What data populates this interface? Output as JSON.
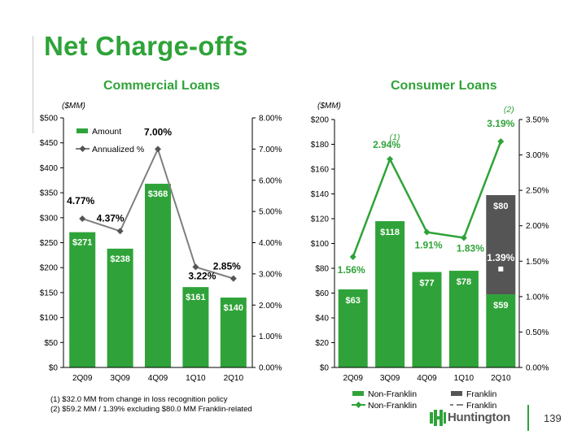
{
  "page": {
    "title": "Net Charge-offs",
    "footnotes": [
      "(1)  $32.0 MM from change in loss recognition policy",
      "(2)  $59.2 MM / 1.39% excluding $80.0 MM Franklin-related"
    ],
    "logo_text": "Huntington",
    "page_number": "139"
  },
  "colors": {
    "accent_green": "#2fa339",
    "franklin_gray": "#555555",
    "line_gray": "#7f7f7f"
  },
  "chart_data": [
    {
      "type": "bar",
      "title": "Commercial Loans",
      "units_note": "($MM)",
      "categories": [
        "2Q09",
        "3Q09",
        "4Q09",
        "1Q10",
        "2Q10"
      ],
      "series": [
        {
          "name": "Amount",
          "kind": "bar",
          "axis": "left",
          "values": [
            271,
            238,
            368,
            161,
            140
          ],
          "labels": [
            "$271",
            "$238",
            "$368",
            "$161",
            "$140"
          ]
        },
        {
          "name": "Annualized %",
          "kind": "line",
          "axis": "right",
          "values": [
            4.77,
            4.37,
            7.0,
            3.22,
            2.85
          ],
          "labels": [
            "4.77%",
            "4.37%",
            "7.00%",
            "3.22%",
            "2.85%"
          ]
        }
      ],
      "left_axis": {
        "min": 0,
        "max": 500,
        "step": 50,
        "ticks": [
          "$0",
          "$50",
          "$100",
          "$150",
          "$200",
          "$250",
          "$300",
          "$350",
          "$400",
          "$450",
          "$500"
        ]
      },
      "right_axis": {
        "min": 0,
        "max": 8,
        "step": 1,
        "ticks": [
          "0.00%",
          "1.00%",
          "2.00%",
          "3.00%",
          "4.00%",
          "5.00%",
          "6.00%",
          "7.00%",
          "8.00%"
        ]
      },
      "legend": [
        "Amount",
        "Annualized %"
      ],
      "legend_position": "top-left",
      "grid": false
    },
    {
      "type": "bar",
      "title": "Consumer Loans",
      "units_note": "($MM)",
      "categories": [
        "2Q09",
        "3Q09",
        "4Q09",
        "1Q10",
        "2Q10"
      ],
      "series": [
        {
          "name": "Non-Franklin",
          "kind": "bar",
          "axis": "left",
          "values": [
            63,
            118,
            77,
            78,
            59
          ],
          "labels": [
            "$63",
            "$118",
            "$77",
            "$78",
            "$59"
          ]
        },
        {
          "name": "Franklin",
          "kind": "bar",
          "stacked": true,
          "axis": "left",
          "values": [
            0,
            0,
            0,
            0,
            80
          ],
          "labels": [
            "",
            "",
            "",
            "",
            "$80"
          ]
        },
        {
          "name": "Non-Franklin",
          "kind": "line",
          "axis": "right",
          "values": [
            1.56,
            2.94,
            1.91,
            1.83,
            3.19
          ],
          "labels": [
            "1.56%",
            "2.94%",
            "1.91%",
            "1.83%",
            "3.19%"
          ]
        },
        {
          "name": "Franklin",
          "kind": "line",
          "axis": "right",
          "values": [
            null,
            null,
            null,
            null,
            1.39
          ],
          "labels": [
            "",
            "",
            "",
            "",
            "1.39%"
          ]
        }
      ],
      "annotations": [
        {
          "category": "3Q09",
          "text": "(1)"
        },
        {
          "category": "2Q10",
          "text": "(2)"
        }
      ],
      "left_axis": {
        "min": 0,
        "max": 200,
        "step": 20,
        "ticks": [
          "$0",
          "$20",
          "$40",
          "$60",
          "$80",
          "$100",
          "$120",
          "$140",
          "$160",
          "$180",
          "$200"
        ]
      },
      "right_axis": {
        "min": 0,
        "max": 3.5,
        "step": 0.5,
        "ticks": [
          "0.00%",
          "0.50%",
          "1.00%",
          "1.50%",
          "2.00%",
          "2.50%",
          "3.00%",
          "3.50%"
        ]
      },
      "legend": [
        "Non-Franklin",
        "Franklin",
        "Non-Franklin",
        "Franklin"
      ],
      "legend_position": "bottom",
      "grid": false
    }
  ]
}
